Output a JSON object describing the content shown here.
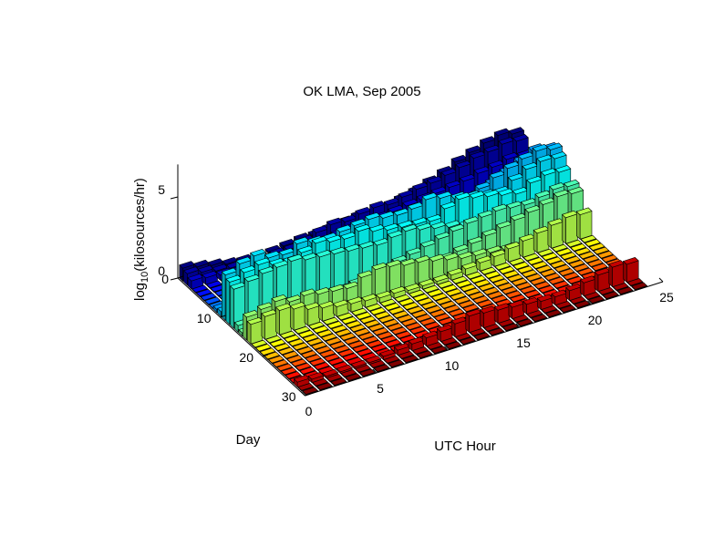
{
  "chart_data": {
    "type": "bar3d",
    "title": "OK LMA, Sep 2005",
    "xlabel": "UTC Hour",
    "ylabel": "Day",
    "zlabel_main": "log",
    "zlabel_sub": "10",
    "zlabel_rest": "(kilosources/hr)",
    "x_ticks": [
      "0",
      "5",
      "10",
      "15",
      "20",
      "25"
    ],
    "y_ticks": [
      "0",
      "10",
      "20",
      "30"
    ],
    "z_ticks": [
      "0",
      "5"
    ],
    "x_range": [
      0,
      25
    ],
    "y_range": [
      0,
      30
    ],
    "z_range": [
      0,
      7
    ],
    "grid": true,
    "colormap": "jet (by day)",
    "hours": 24,
    "days": 30,
    "active_days": [
      {
        "day": 1,
        "values": [
          0.8,
          0.6,
          0.4,
          0.2,
          0.1,
          0.1,
          0.1,
          0.2,
          0.3,
          0.3,
          0.4,
          0.5,
          0.6,
          0.5,
          0.6,
          0.8,
          1.0,
          1.3,
          1.6,
          2.0,
          2.3,
          2.6,
          2.8,
          2.6
        ]
      },
      {
        "day": 2,
        "values": [
          0.7,
          0.5,
          0.3,
          0.2,
          0.1,
          0.1,
          0.2,
          0.2,
          0.4,
          0.7,
          0.9,
          0.8,
          1.0,
          1.1,
          1.0,
          1.2,
          1.4,
          1.5,
          1.7,
          1.9,
          2.2,
          2.3,
          2.5,
          2.4
        ]
      },
      {
        "day": 3,
        "values": [
          0.5,
          0.4,
          0.3,
          0.2,
          0.2,
          0.1,
          0.1,
          0.2,
          0.3,
          0.4,
          0.5,
          0.6,
          0.6,
          0.7,
          0.8,
          0.9,
          1.0,
          1.1,
          1.2,
          1.3,
          1.5,
          1.6,
          1.8,
          1.7
        ]
      },
      {
        "day": 9,
        "values": [
          0.2,
          0.1,
          0.1,
          0.1,
          0.1,
          0.1,
          0.2,
          0.2,
          0.3,
          0.4,
          0.5,
          0.6,
          0.7,
          0.8,
          1.0,
          1.2,
          1.4,
          1.8,
          2.2,
          2.6,
          3.0,
          3.4,
          3.8,
          3.6
        ]
      },
      {
        "day": 10,
        "values": [
          0.3,
          0.2,
          0.1,
          0.1,
          0.1,
          0.1,
          0.1,
          0.2,
          0.2,
          0.3,
          0.4,
          0.6,
          0.8,
          1.0,
          1.3,
          1.6,
          2.0,
          2.4,
          2.8,
          3.2,
          3.5,
          3.8,
          4.0,
          3.8
        ]
      },
      {
        "day": 11,
        "values": [
          2.8,
          3.2,
          3.4,
          3.0,
          2.9,
          3.3,
          3.1,
          3.0,
          3.2,
          3.3,
          3.4,
          3.2,
          3.1,
          3.2,
          3.5,
          3.3,
          3.0,
          2.8,
          2.6,
          2.5,
          3.0,
          3.4,
          3.6,
          3.5
        ]
      },
      {
        "day": 12,
        "values": [
          2.6,
          2.9,
          3.1,
          2.8,
          2.7,
          3.0,
          3.3,
          3.1,
          3.0,
          3.2,
          2.9,
          2.7,
          2.6,
          2.5,
          2.4,
          2.9,
          3.2,
          3.0,
          2.8,
          2.6,
          2.4,
          2.8,
          3.0,
          2.9
        ]
      },
      {
        "day": 13,
        "values": [
          2.4,
          2.6,
          2.8,
          2.9,
          3.0,
          2.8,
          2.7,
          2.6,
          2.5,
          2.4,
          2.3,
          2.5,
          2.6,
          2.4,
          2.2,
          2.0,
          1.8,
          1.6,
          1.5,
          1.4,
          1.6,
          1.8,
          2.0,
          1.9
        ]
      },
      {
        "day": 14,
        "values": [
          0.4,
          0.3,
          0.2,
          0.2,
          0.3,
          0.4,
          0.5,
          0.6,
          0.7,
          0.8,
          1.0,
          1.2,
          1.4,
          1.6,
          1.8,
          2.0,
          2.2,
          2.3,
          2.4,
          2.3,
          2.2,
          2.4,
          2.6,
          2.5
        ]
      },
      {
        "day": 15,
        "values": [
          0.2,
          0.1,
          0.1,
          0.1,
          0.1,
          0.1,
          0.1,
          0.1,
          0.2,
          0.3,
          0.4,
          0.5,
          0.6,
          0.7,
          0.8,
          1.0,
          1.2,
          1.4,
          1.6,
          1.8,
          2.0,
          2.2,
          2.4,
          2.3
        ]
      },
      {
        "day": 16,
        "values": [
          1.4,
          1.6,
          1.8,
          1.5,
          1.6,
          1.4,
          1.3,
          1.2,
          1.6,
          1.8,
          1.7,
          1.5,
          1.4,
          1.2,
          1.0,
          0.8,
          0.7,
          0.6,
          0.5,
          0.4,
          0.4,
          0.5,
          0.6,
          0.5
        ]
      },
      {
        "day": 17,
        "values": [
          1.2,
          1.4,
          1.5,
          1.3,
          1.0,
          0.8,
          0.6,
          0.5,
          0.4,
          0.3,
          0.3,
          0.2,
          0.2,
          0.2,
          0.3,
          0.4,
          0.5,
          0.6,
          0.8,
          1.0,
          1.2,
          1.4,
          1.6,
          1.5
        ]
      },
      {
        "day": 28,
        "values": [
          0.3,
          0.2,
          0.1,
          0.1,
          0.1,
          0.1,
          0.2,
          0.3,
          0.4,
          0.5,
          0.6,
          0.8,
          1.0,
          0.9,
          0.8,
          0.7,
          0.6,
          0.5,
          0.5,
          0.6,
          0.8,
          1.0,
          1.2,
          1.1
        ]
      }
    ]
  }
}
